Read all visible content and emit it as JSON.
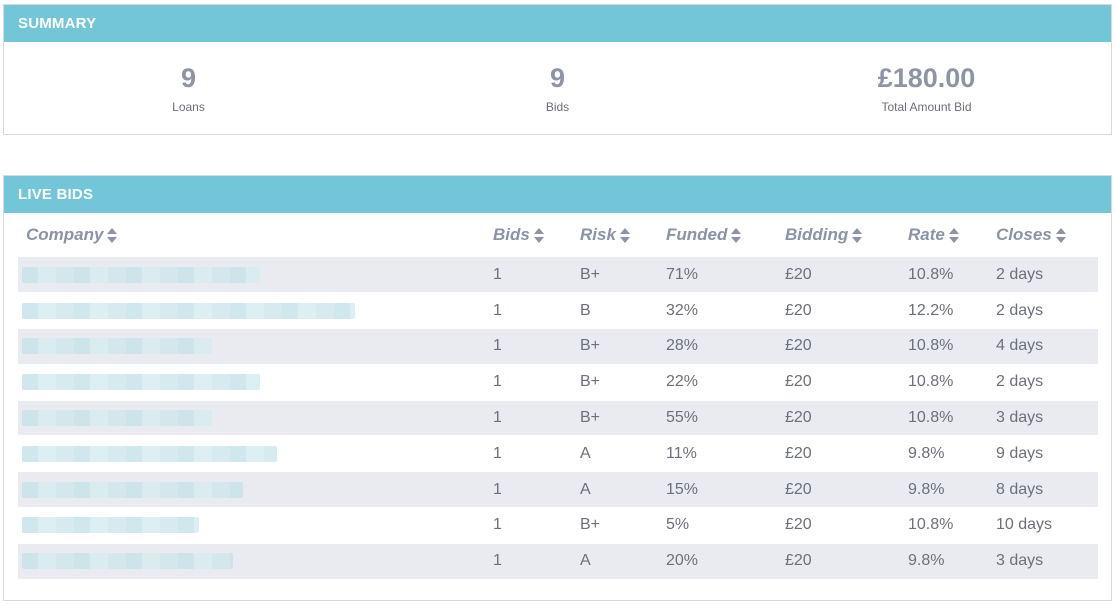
{
  "summary": {
    "title": "SUMMARY",
    "stats": [
      {
        "value": "9",
        "label": "Loans"
      },
      {
        "value": "9",
        "label": "Bids"
      },
      {
        "value": "£180.00",
        "label": "Total Amount Bid"
      }
    ]
  },
  "live_bids": {
    "title": "LIVE BIDS",
    "columns": [
      "Company",
      "Bids",
      "Risk",
      "Funded",
      "Bidding",
      "Rate",
      "Closes"
    ],
    "rows": [
      {
        "bids": "1",
        "risk": "B+",
        "funded": "71%",
        "bidding": "£20",
        "rate": "10.8%",
        "closes": "2 days",
        "blur": 0.7
      },
      {
        "bids": "1",
        "risk": "B",
        "funded": "32%",
        "bidding": "£20",
        "rate": "12.2%",
        "closes": "2 days",
        "blur": 0.98
      },
      {
        "bids": "1",
        "risk": "B+",
        "funded": "28%",
        "bidding": "£20",
        "rate": "10.8%",
        "closes": "4 days",
        "blur": 0.56
      },
      {
        "bids": "1",
        "risk": "B+",
        "funded": "22%",
        "bidding": "£20",
        "rate": "10.8%",
        "closes": "2 days",
        "blur": 0.7
      },
      {
        "bids": "1",
        "risk": "B+",
        "funded": "55%",
        "bidding": "£20",
        "rate": "10.8%",
        "closes": "3 days",
        "blur": 0.56
      },
      {
        "bids": "1",
        "risk": "A",
        "funded": "11%",
        "bidding": "£20",
        "rate": "9.8%",
        "closes": "9 days",
        "blur": 0.75
      },
      {
        "bids": "1",
        "risk": "A",
        "funded": "15%",
        "bidding": "£20",
        "rate": "9.8%",
        "closes": "8 days",
        "blur": 0.65
      },
      {
        "bids": "1",
        "risk": "B+",
        "funded": "5%",
        "bidding": "£20",
        "rate": "10.8%",
        "closes": "10 days",
        "blur": 0.52
      },
      {
        "bids": "1",
        "risk": "A",
        "funded": "20%",
        "bidding": "£20",
        "rate": "9.8%",
        "closes": "3 days",
        "blur": 0.62
      }
    ],
    "sort_icon": "sort-arrows-icon"
  }
}
